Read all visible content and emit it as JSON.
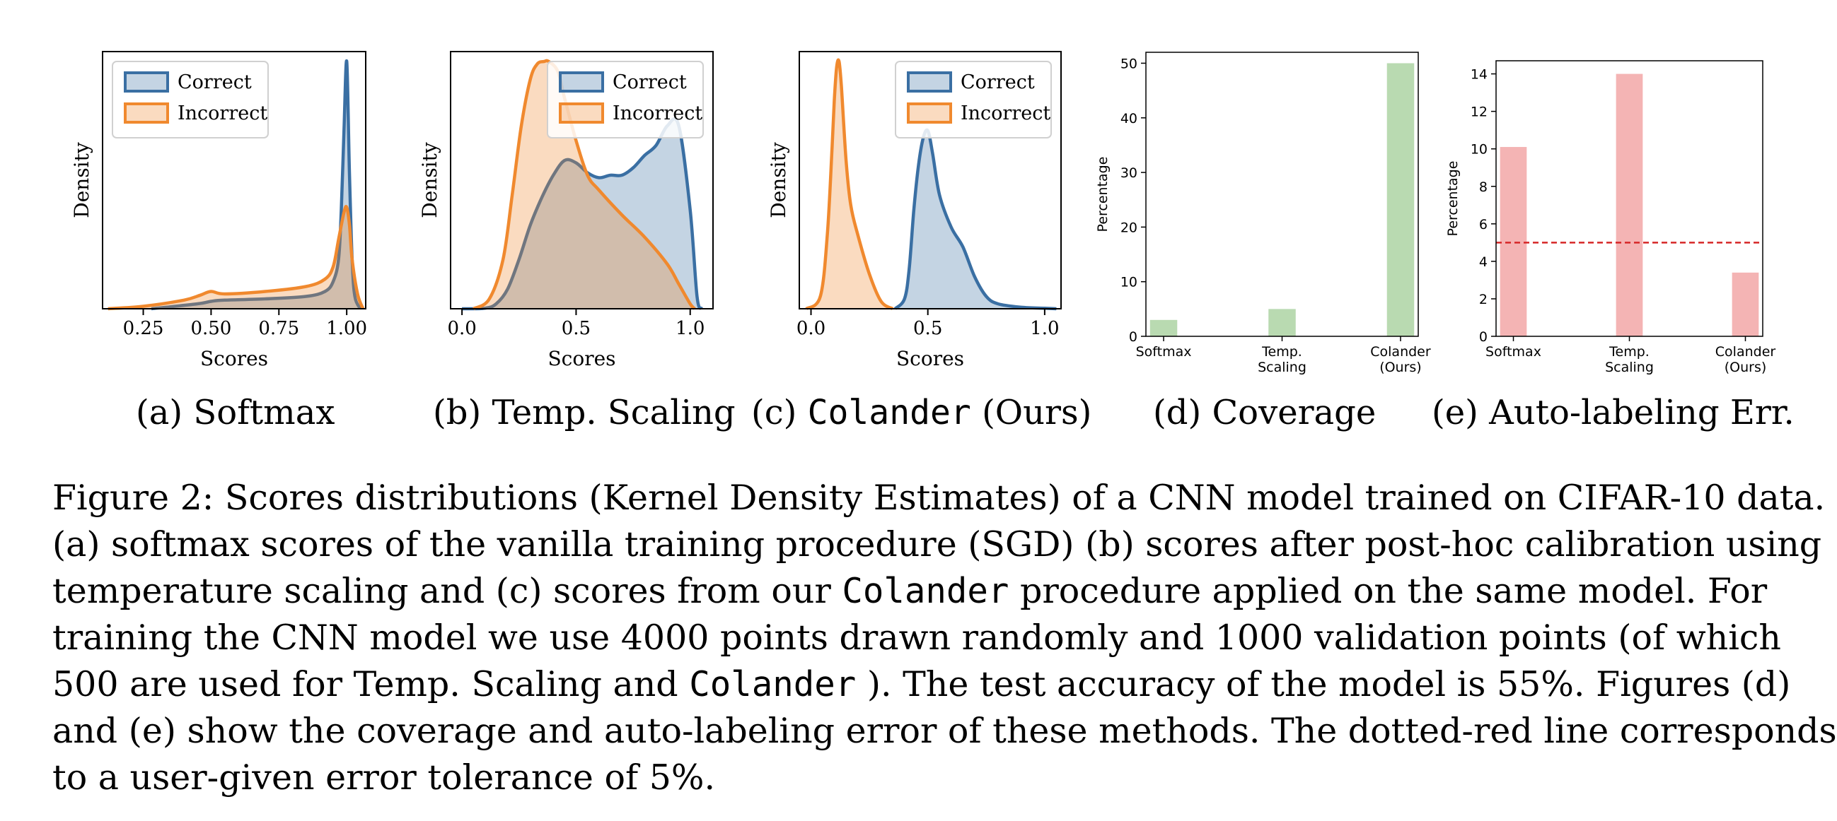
{
  "chart_data": [
    {
      "type": "area",
      "panel": "(a)",
      "title": "",
      "xlabel": "Scores",
      "ylabel": "Density",
      "xlim": [
        0.1,
        1.07
      ],
      "xticks": [
        0.25,
        0.5,
        0.75,
        1.0
      ],
      "xtick_labels": [
        "0.25",
        "0.50",
        "0.75",
        "1.00"
      ],
      "yticks_shown": false,
      "legend": "top-left",
      "series": [
        {
          "name": "Correct",
          "color": "#3a6fa3",
          "x": [
            0.28,
            0.45,
            0.5,
            0.55,
            0.7,
            0.85,
            0.92,
            0.95,
            0.97,
            0.98,
            0.99,
            1.0,
            1.01,
            1.02,
            1.03,
            1.05
          ],
          "y": [
            0.0,
            0.02,
            0.03,
            0.035,
            0.04,
            0.05,
            0.07,
            0.11,
            0.2,
            0.4,
            0.72,
            1.0,
            0.55,
            0.2,
            0.05,
            0.0
          ]
        },
        {
          "name": "Incorrect",
          "color": "#f0892e",
          "x": [
            0.12,
            0.25,
            0.4,
            0.46,
            0.5,
            0.55,
            0.7,
            0.85,
            0.92,
            0.95,
            0.97,
            0.99,
            1.0,
            1.01,
            1.02,
            1.04,
            1.06
          ],
          "y": [
            0.0,
            0.01,
            0.035,
            0.055,
            0.07,
            0.06,
            0.07,
            0.09,
            0.12,
            0.17,
            0.28,
            0.39,
            0.41,
            0.34,
            0.2,
            0.06,
            0.0
          ]
        }
      ]
    },
    {
      "type": "area",
      "panel": "(b)",
      "title": "",
      "xlabel": "Scores",
      "ylabel": "Density",
      "xlim": [
        -0.05,
        1.1
      ],
      "xticks": [
        0.0,
        0.5,
        1.0
      ],
      "xtick_labels": [
        "0.0",
        "0.5",
        "1.0"
      ],
      "yticks_shown": false,
      "legend": "top-right",
      "series": [
        {
          "name": "Correct",
          "color": "#3a6fa3",
          "x": [
            0.0,
            0.1,
            0.15,
            0.2,
            0.25,
            0.3,
            0.35,
            0.4,
            0.45,
            0.5,
            0.55,
            0.6,
            0.65,
            0.7,
            0.75,
            0.8,
            0.85,
            0.9,
            0.95,
            1.0,
            1.03,
            1.05
          ],
          "y": [
            0.0,
            0.002,
            0.02,
            0.08,
            0.2,
            0.34,
            0.45,
            0.54,
            0.6,
            0.59,
            0.55,
            0.53,
            0.54,
            0.54,
            0.57,
            0.62,
            0.66,
            0.74,
            0.74,
            0.4,
            0.05,
            0.0
          ]
        },
        {
          "name": "Incorrect",
          "color": "#f0892e",
          "x": [
            0.05,
            0.12,
            0.18,
            0.22,
            0.26,
            0.3,
            0.33,
            0.36,
            0.38,
            0.42,
            0.45,
            0.5,
            0.55,
            0.6,
            0.7,
            0.8,
            0.9,
            0.95,
            1.0,
            1.02
          ],
          "y": [
            0.0,
            0.04,
            0.2,
            0.46,
            0.74,
            0.93,
            0.99,
            1.0,
            1.0,
            0.96,
            0.85,
            0.68,
            0.54,
            0.48,
            0.38,
            0.29,
            0.18,
            0.1,
            0.02,
            0.0
          ]
        }
      ]
    },
    {
      "type": "area",
      "panel": "(c)",
      "title": "",
      "xlabel": "Scores",
      "ylabel": "Density",
      "xlim": [
        -0.05,
        1.07
      ],
      "xticks": [
        0.0,
        0.5,
        1.0
      ],
      "xtick_labels": [
        "0.0",
        "0.5",
        "1.0"
      ],
      "yticks_shown": false,
      "legend": "top-right",
      "series": [
        {
          "name": "Correct",
          "color": "#3a6fa3",
          "x": [
            0.36,
            0.4,
            0.42,
            0.44,
            0.46,
            0.48,
            0.5,
            0.52,
            0.55,
            0.6,
            0.65,
            0.7,
            0.75,
            0.8,
            0.9,
            1.0,
            1.05
          ],
          "y": [
            0.0,
            0.04,
            0.16,
            0.4,
            0.58,
            0.69,
            0.72,
            0.63,
            0.46,
            0.33,
            0.25,
            0.13,
            0.05,
            0.02,
            0.006,
            0.002,
            0.0
          ]
        },
        {
          "name": "Incorrect",
          "color": "#f0892e",
          "x": [
            -0.02,
            0.04,
            0.07,
            0.09,
            0.1,
            0.11,
            0.12,
            0.13,
            0.15,
            0.17,
            0.2,
            0.25,
            0.3,
            0.35
          ],
          "y": [
            0.0,
            0.05,
            0.3,
            0.65,
            0.85,
            0.98,
            1.0,
            0.9,
            0.6,
            0.42,
            0.3,
            0.14,
            0.03,
            0.0
          ]
        }
      ]
    },
    {
      "type": "bar",
      "panel": "(d)",
      "title": "",
      "xlabel": "",
      "ylabel": "Percentage",
      "ylim": [
        0,
        52
      ],
      "yticks": [
        0,
        10,
        20,
        30,
        40,
        50
      ],
      "categories": [
        "Softmax",
        "Temp. Scaling",
        "Colander (Ours)"
      ],
      "category_lines": [
        [
          "Softmax"
        ],
        [
          "Temp.",
          "Scaling"
        ],
        [
          "Colander",
          "(Ours)"
        ]
      ],
      "values": [
        3,
        5,
        50
      ],
      "color": "#b9dab1"
    },
    {
      "type": "bar",
      "panel": "(e)",
      "title": "",
      "xlabel": "",
      "ylabel": "Percentage",
      "ylim": [
        0,
        14.7
      ],
      "yticks": [
        0,
        2,
        4,
        6,
        8,
        10,
        12,
        14
      ],
      "categories": [
        "Softmax",
        "Temp. Scaling",
        "Colander (Ours)"
      ],
      "category_lines": [
        [
          "Softmax"
        ],
        [
          "Temp.",
          "Scaling"
        ],
        [
          "Colander",
          "(Ours)"
        ]
      ],
      "values": [
        10.1,
        14,
        3.4
      ],
      "color": "#f4b4b4",
      "reference_line": {
        "y": 5,
        "color": "#d62728",
        "style": "dashed"
      }
    }
  ],
  "colors": {
    "correct": "#3a6fa3",
    "incorrect": "#f0892e",
    "coverage_bar": "#b9dab1",
    "error_bar": "#f4b4b4",
    "tolerance_line": "#d62728"
  },
  "subcaptions": {
    "a": {
      "tag": "(a)",
      "text": "Softmax"
    },
    "b": {
      "tag": "(b)",
      "text": "Temp. Scaling"
    },
    "c": {
      "tag": "(c)",
      "mono": "Colander",
      "text": "(Ours)"
    },
    "d": {
      "tag": "(d)",
      "text": "Coverage"
    },
    "e": {
      "tag": "(e)",
      "text": "Auto-labeling Err."
    }
  },
  "caption": {
    "line1": "Figure 2:  Scores distributions (Kernel Density Estimates) of a CNN model trained on CIFAR-10 data.",
    "line2": "(a) softmax scores of the vanilla training procedure (SGD) (b) scores after post-hoc calibration using",
    "line3_a": "temperature scaling and (c) scores from our ",
    "line3_mono": "Colander",
    "line3_b": " procedure applied on the same model. For",
    "line4": "training the CNN model we use 4000 points drawn randomly and 1000 validation points (of which",
    "line5_a": "500 are used for Temp. Scaling and ",
    "line5_mono": "Colander",
    "line5_b": " ). The test accuracy of the model is 55%. Figures (d)",
    "line6": "and (e) show the coverage and auto-labeling error of these methods. The dotted-red line corresponds",
    "line7": "to a user-given error tolerance of 5%."
  }
}
